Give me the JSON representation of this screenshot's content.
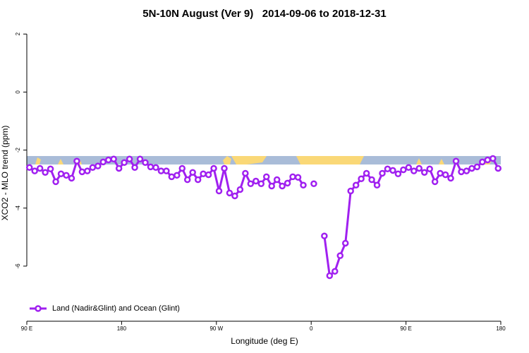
{
  "chart_data": {
    "type": "line",
    "title": "5N-10N August (Ver 9)   2014-09-06 to 2018-12-31",
    "xlabel": "Longitude (deg E)",
    "ylabel": "XCO2 - MLO trend (ppm)",
    "xlim": [
      90,
      540
    ],
    "xticks": [
      {
        "value": 90,
        "label": "90 E"
      },
      {
        "value": 180,
        "label": "180"
      },
      {
        "value": 270,
        "label": "90 W"
      },
      {
        "value": 360,
        "label": "0"
      },
      {
        "value": 450,
        "label": "90 E"
      },
      {
        "value": 540,
        "label": "180"
      }
    ],
    "ylim": [
      -7.9,
      2.2
    ],
    "yticks": [
      2,
      0,
      -2,
      -4,
      -6
    ],
    "legend": "bottomleft",
    "x": [
      92.5,
      97.5,
      102.5,
      107.5,
      112.5,
      117.5,
      122.5,
      127.5,
      132.5,
      137.5,
      142.5,
      147.5,
      152.5,
      157.5,
      162.5,
      167.5,
      172.5,
      177.5,
      182.5,
      187.5,
      192.5,
      197.5,
      202.5,
      207.5,
      212.5,
      217.5,
      222.5,
      227.5,
      232.5,
      237.5,
      242.5,
      247.5,
      252.5,
      257.5,
      262.5,
      267.5,
      272.5,
      277.5,
      282.5,
      287.5,
      292.5,
      297.5,
      302.5,
      307.5,
      312.5,
      317.5,
      322.5,
      327.5,
      332.5,
      337.5,
      342.5,
      347.5,
      352.5,
      357.5,
      362.5,
      367.5,
      372.5,
      377.5,
      382.5,
      387.5,
      392.5,
      397.5,
      402.5,
      407.5,
      412.5,
      417.5,
      422.5,
      427.5,
      432.5,
      437.5,
      442.5,
      447.5,
      452.5,
      457.5,
      462.5,
      467.5,
      472.5,
      477.5,
      482.5,
      487.5,
      492.5,
      497.5,
      502.5,
      507.5,
      512.5,
      517.5,
      522.5,
      527.5,
      532.5,
      537.5
    ],
    "series": [
      {
        "name": "Land (Nadir&Glint) and Ocean (Glint)",
        "color": "#a020f0",
        "values": [
          -2.6,
          -2.72,
          -2.63,
          -2.77,
          -2.65,
          -3.09,
          -2.82,
          -2.87,
          -2.97,
          -2.38,
          -2.75,
          -2.72,
          -2.6,
          -2.55,
          -2.41,
          -2.34,
          -2.31,
          -2.63,
          -2.43,
          -2.31,
          -2.6,
          -2.31,
          -2.43,
          -2.58,
          -2.6,
          -2.72,
          -2.72,
          -2.92,
          -2.87,
          -2.63,
          -3.02,
          -2.77,
          -3.02,
          -2.82,
          -2.85,
          -2.63,
          -3.41,
          -2.63,
          -3.48,
          -3.58,
          -3.36,
          -2.8,
          -3.16,
          -3.07,
          -3.16,
          -2.92,
          -3.24,
          -3.02,
          -3.24,
          -3.14,
          -2.92,
          -2.94,
          -3.21,
          null,
          -3.16,
          null,
          -4.96,
          -6.33,
          -6.18,
          -5.64,
          -5.21,
          -3.41,
          -3.21,
          -2.99,
          -2.8,
          -3.02,
          -3.21,
          -2.8,
          -2.65,
          -2.7,
          -2.82,
          -2.68,
          -2.6,
          -2.72,
          -2.63,
          -2.77,
          -2.65,
          -3.09,
          -2.8,
          -2.85,
          -2.97,
          -2.38,
          -2.75,
          -2.72,
          -2.63,
          -2.58,
          -2.41,
          -2.34,
          -2.29,
          -2.63
        ]
      }
    ]
  }
}
